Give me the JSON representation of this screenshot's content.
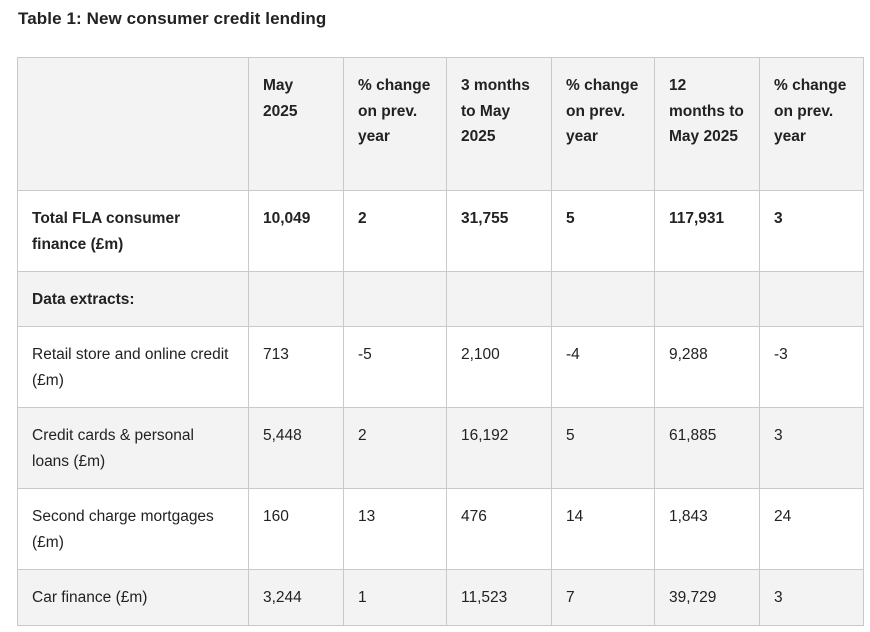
{
  "caption": "Table 1: New consumer credit lending",
  "table": {
    "headers": [
      "",
      "May 2025",
      "% change on prev. year",
      "3 months to May 2025",
      "% change on prev. year",
      "12 months to May 2025",
      "% change on prev. year"
    ],
    "rows": [
      {
        "label": "Total FLA consumer finance (£m)",
        "values": [
          "10,049",
          "2",
          "31,755",
          "5",
          "117,931",
          "3"
        ]
      },
      {
        "label": "Data extracts:",
        "values": [
          "",
          "",
          "",
          "",
          "",
          ""
        ]
      },
      {
        "label": "Retail store and online credit (£m)",
        "values": [
          "713",
          "-5",
          "2,100",
          "-4",
          "9,288",
          "-3"
        ]
      },
      {
        "label": "Credit cards & personal loans (£m)",
        "values": [
          "5,448",
          "2",
          "16,192",
          "5",
          "61,885",
          "3"
        ]
      },
      {
        "label": "Second charge mortgages (£m)",
        "values": [
          "160",
          "13",
          "476",
          "14",
          "1,843",
          "24"
        ]
      },
      {
        "label": "Car finance (£m)",
        "values": [
          "3,244",
          "1",
          "11,523",
          "7",
          "39,729",
          "3"
        ]
      }
    ]
  }
}
